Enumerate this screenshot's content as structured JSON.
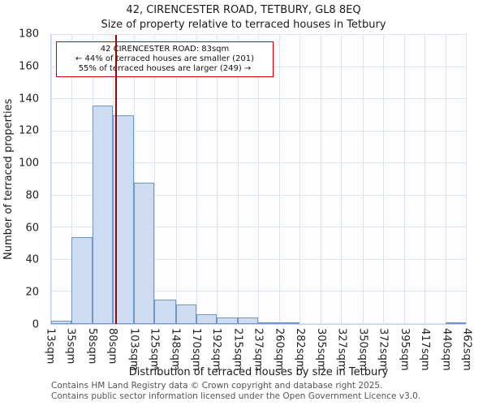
{
  "title": "42, CIRENCESTER ROAD, TETBURY, GL8 8EQ",
  "subtitle": "Size of property relative to terraced houses in Tetbury",
  "annotation": {
    "line1": "42 CIRENCESTER ROAD: 83sqm",
    "line2": "← 44% of terraced houses are smaller (201)",
    "line3": "55% of terraced houses are larger (249) →",
    "border_color": "#cc0000"
  },
  "footer": {
    "line1": "Contains HM Land Registry data © Crown copyright and database right 2025.",
    "line2": "Contains public sector information licensed under the Open Government Licence v3.0."
  },
  "chart_data": {
    "type": "bar",
    "title": "42, CIRENCESTER ROAD, TETBURY, GL8 8EQ",
    "subtitle": "Size of property relative to terraced houses in Tetbury",
    "xlabel": "Distribution of terraced houses by size in Tetbury",
    "ylabel": "Number of terraced properties",
    "ylim": [
      0,
      180
    ],
    "y_ticks": [
      0,
      20,
      40,
      60,
      80,
      100,
      120,
      140,
      160,
      180
    ],
    "bin_edges": [
      13,
      35,
      58,
      80,
      103,
      125,
      148,
      170,
      192,
      215,
      237,
      260,
      282,
      305,
      327,
      350,
      372,
      395,
      417,
      440,
      462
    ],
    "x_tick_labels": [
      "13sqm",
      "35sqm",
      "58sqm",
      "80sqm",
      "103sqm",
      "125sqm",
      "148sqm",
      "170sqm",
      "192sqm",
      "215sqm",
      "237sqm",
      "260sqm",
      "282sqm",
      "305sqm",
      "327sqm",
      "350sqm",
      "372sqm",
      "395sqm",
      "417sqm",
      "440sqm",
      "462sqm"
    ],
    "values": [
      2,
      54,
      136,
      130,
      88,
      15,
      12,
      6,
      4,
      4,
      1,
      1,
      0,
      0,
      0,
      0,
      0,
      0,
      0,
      1
    ],
    "marker": {
      "value": 83,
      "label": "83sqm",
      "color": "#a00000"
    },
    "bar_fill": "#cddcf1",
    "bar_stroke": "#6e96c8",
    "grid": true,
    "grid_color": "#dde3f0",
    "legend": "none"
  }
}
